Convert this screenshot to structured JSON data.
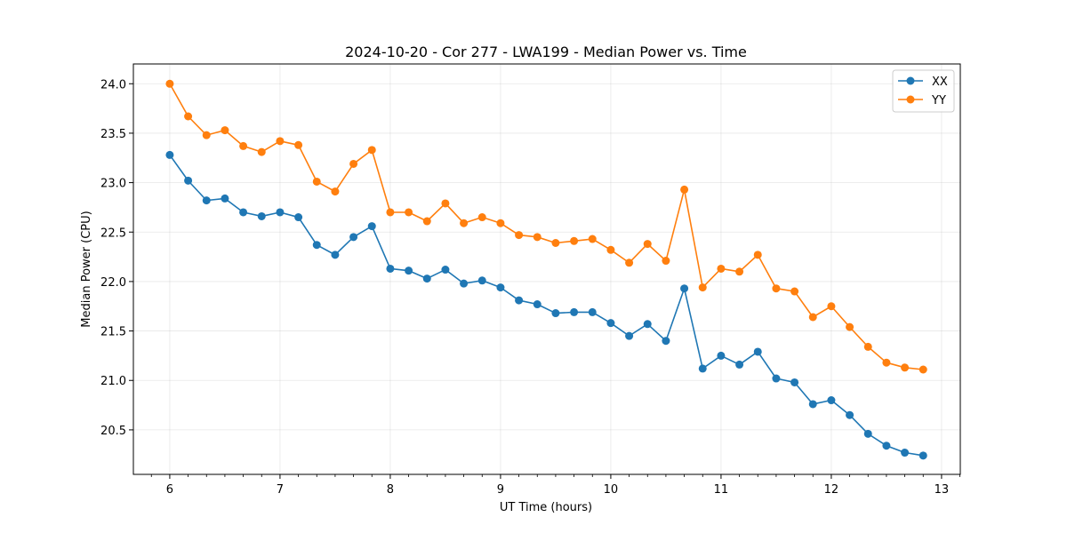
{
  "chart_data": {
    "type": "line",
    "title": "2024-10-20 - Cor 277 - LWA199 - Median Power vs. Time",
    "xlabel": "UT Time (hours)",
    "ylabel": "Median Power (CPU)",
    "xlim": [
      5.67,
      13.17
    ],
    "ylim": [
      20.05,
      24.2
    ],
    "x_ticks": [
      6,
      7,
      8,
      9,
      10,
      11,
      12,
      13
    ],
    "y_ticks": [
      20.5,
      21.0,
      21.5,
      22.0,
      22.5,
      23.0,
      23.5,
      24.0
    ],
    "grid": true,
    "legend_position": "upper-right",
    "x": [
      6.0,
      6.1667,
      6.3333,
      6.5,
      6.6667,
      6.8333,
      7.0,
      7.1667,
      7.3333,
      7.5,
      7.6667,
      7.8333,
      8.0,
      8.1667,
      8.3333,
      8.5,
      8.6667,
      8.8333,
      9.0,
      9.1667,
      9.3333,
      9.5,
      9.6667,
      9.8333,
      10.0,
      10.1667,
      10.3333,
      10.5,
      10.6667,
      10.8333,
      11.0,
      11.1667,
      11.3333,
      11.5,
      11.6667,
      11.8333,
      12.0,
      12.1667,
      12.3333,
      12.5,
      12.6667,
      12.8333
    ],
    "series": [
      {
        "name": "XX",
        "color": "#1f77b4",
        "values": [
          23.28,
          23.02,
          22.82,
          22.84,
          22.7,
          22.66,
          22.7,
          22.65,
          22.37,
          22.27,
          22.45,
          22.56,
          22.13,
          22.11,
          22.03,
          22.12,
          21.98,
          22.01,
          21.94,
          21.81,
          21.77,
          21.68,
          21.69,
          21.69,
          21.58,
          21.45,
          21.57,
          21.4,
          21.93,
          21.12,
          21.25,
          21.16,
          21.29,
          21.02,
          20.98,
          20.76,
          20.8,
          20.65,
          20.46,
          20.34,
          20.27,
          20.24
        ]
      },
      {
        "name": "YY",
        "color": "#ff7f0e",
        "values": [
          24.0,
          23.67,
          23.48,
          23.53,
          23.37,
          23.31,
          23.42,
          23.38,
          23.01,
          22.91,
          23.19,
          23.33,
          22.7,
          22.7,
          22.61,
          22.79,
          22.59,
          22.65,
          22.59,
          22.47,
          22.45,
          22.39,
          22.41,
          22.43,
          22.32,
          22.19,
          22.38,
          22.21,
          22.93,
          21.94,
          22.13,
          22.1,
          22.27,
          21.93,
          21.9,
          21.64,
          21.75,
          21.54,
          21.34,
          21.18,
          21.13,
          21.11
        ]
      }
    ]
  }
}
